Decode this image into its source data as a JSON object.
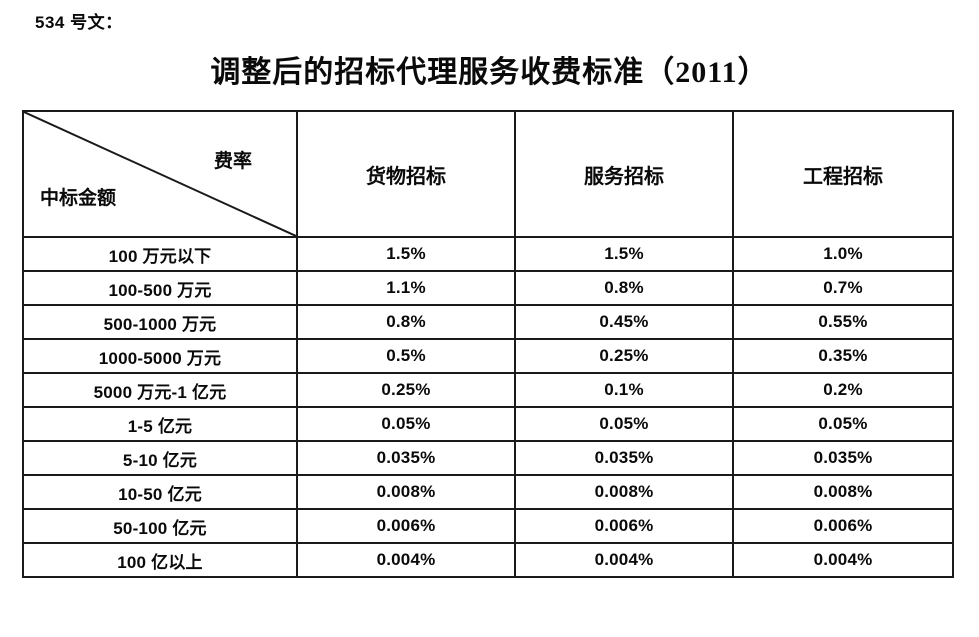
{
  "doc": {
    "ref_label": "534 号文：",
    "title": "调整后的招标代理服务收费标准（2011）"
  },
  "table": {
    "corner": {
      "top_right": "费率",
      "bottom_left": "中标金额"
    },
    "columns": [
      "货物招标",
      "服务招标",
      "工程招标"
    ],
    "rows": [
      {
        "label": "100 万元以下",
        "values": [
          "1.5%",
          "1.5%",
          "1.0%"
        ]
      },
      {
        "label": "100-500 万元",
        "values": [
          "1.1%",
          "0.8%",
          "0.7%"
        ]
      },
      {
        "label": "500-1000 万元",
        "values": [
          "0.8%",
          "0.45%",
          "0.55%"
        ]
      },
      {
        "label": "1000-5000 万元",
        "values": [
          "0.5%",
          "0.25%",
          "0.35%"
        ]
      },
      {
        "label": "5000 万元-1 亿元",
        "values": [
          "0.25%",
          "0.1%",
          "0.2%"
        ]
      },
      {
        "label": "1-5 亿元",
        "values": [
          "0.05%",
          "0.05%",
          "0.05%"
        ]
      },
      {
        "label": "5-10 亿元",
        "values": [
          "0.035%",
          "0.035%",
          "0.035%"
        ]
      },
      {
        "label": "10-50 亿元",
        "values": [
          "0.008%",
          "0.008%",
          "0.008%"
        ]
      },
      {
        "label": "50-100 亿元",
        "values": [
          "0.006%",
          "0.006%",
          "0.006%"
        ]
      },
      {
        "label": "100 亿以上",
        "values": [
          "0.004%",
          "0.004%",
          "0.004%"
        ]
      }
    ],
    "colors": {
      "text": "#0a0a0a",
      "border": "#1a1a1a",
      "background": "#ffffff"
    }
  }
}
